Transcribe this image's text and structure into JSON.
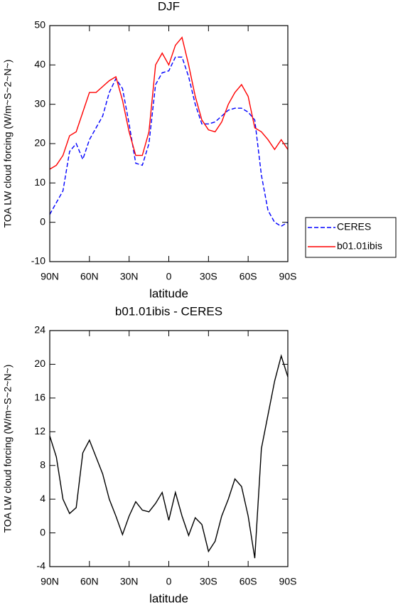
{
  "chart_data": [
    {
      "type": "line",
      "title": "DJF",
      "xlabel": "latitude",
      "ylabel": "TOA LW cloud forcing (W/m~S~2~N~)",
      "x": [
        90,
        85,
        80,
        75,
        70,
        65,
        60,
        55,
        50,
        45,
        40,
        35,
        30,
        25,
        20,
        15,
        10,
        5,
        0,
        -5,
        -10,
        -15,
        -20,
        -25,
        -30,
        -35,
        -40,
        -45,
        -50,
        -55,
        -60,
        -65,
        -70,
        -75,
        -80,
        -85,
        -90
      ],
      "series": [
        {
          "name": "CERES",
          "color": "#0000ff",
          "line_style": "dashed",
          "values": [
            2,
            5,
            8,
            18,
            20,
            16,
            21,
            24,
            27,
            33,
            36.5,
            34,
            25,
            15,
            14.5,
            20,
            35,
            38,
            38.5,
            42,
            42,
            37,
            30,
            25,
            25,
            25.5,
            27,
            28.5,
            29,
            29,
            28,
            26,
            12,
            3,
            0,
            -1,
            0
          ]
        },
        {
          "name": "b01.01ibis",
          "color": "#ff0000",
          "line_style": "solid",
          "values": [
            13.5,
            14.5,
            17,
            22,
            23,
            28,
            33,
            33,
            34.5,
            36,
            37,
            31,
            23,
            17,
            17,
            23,
            40,
            43,
            40,
            45,
            47,
            40,
            32,
            26,
            23.5,
            23,
            25.5,
            30,
            33,
            35,
            32,
            24,
            23,
            21,
            18.5,
            21,
            18.5
          ]
        }
      ],
      "xlim": [
        90,
        -90
      ],
      "xticks": [
        {
          "value": 90,
          "label": "90N"
        },
        {
          "value": 60,
          "label": "60N"
        },
        {
          "value": 30,
          "label": "30N"
        },
        0,
        {
          "value": -30,
          "label": "30S"
        },
        {
          "value": -60,
          "label": "60S"
        },
        {
          "value": -90,
          "label": "90S"
        }
      ],
      "ylim": [
        -10,
        50
      ],
      "yticks": [
        -10,
        0,
        10,
        20,
        30,
        40,
        50
      ],
      "legend": "right"
    },
    {
      "type": "line",
      "title": "b01.01ibis - CERES",
      "xlabel": "latitude",
      "ylabel": "TOA LW cloud forcing (W/m~S~2~N~)",
      "x": [
        90,
        85,
        80,
        75,
        70,
        65,
        60,
        55,
        50,
        45,
        40,
        35,
        30,
        25,
        20,
        15,
        10,
        5,
        0,
        -5,
        -10,
        -15,
        -20,
        -25,
        -30,
        -35,
        -40,
        -45,
        -50,
        -55,
        -60,
        -65,
        -70,
        -75,
        -80,
        -85,
        -90
      ],
      "series": [
        {
          "color": "#000000",
          "line_style": "solid",
          "values": [
            11.5,
            9,
            4,
            2.3,
            3,
            9.5,
            11,
            9,
            7,
            4,
            2,
            -0.2,
            2,
            3.7,
            2.7,
            2.5,
            3.5,
            4.8,
            1.5,
            4.8,
            2,
            -0.3,
            1.8,
            1,
            -2.2,
            -1,
            2,
            4,
            6.4,
            5.5,
            2,
            -3,
            10,
            14,
            18,
            21,
            18.5
          ]
        }
      ],
      "xlim": [
        90,
        -90
      ],
      "xticks": [
        {
          "value": 90,
          "label": "90N"
        },
        {
          "value": 60,
          "label": "60N"
        },
        {
          "value": 30,
          "label": "30N"
        },
        0,
        {
          "value": -30,
          "label": "30S"
        },
        {
          "value": -60,
          "label": "60S"
        },
        {
          "value": -90,
          "label": "90S"
        }
      ],
      "ylim": [
        -4,
        24
      ],
      "yticks": [
        -4,
        0,
        4,
        8,
        12,
        16,
        20,
        24
      ]
    }
  ]
}
